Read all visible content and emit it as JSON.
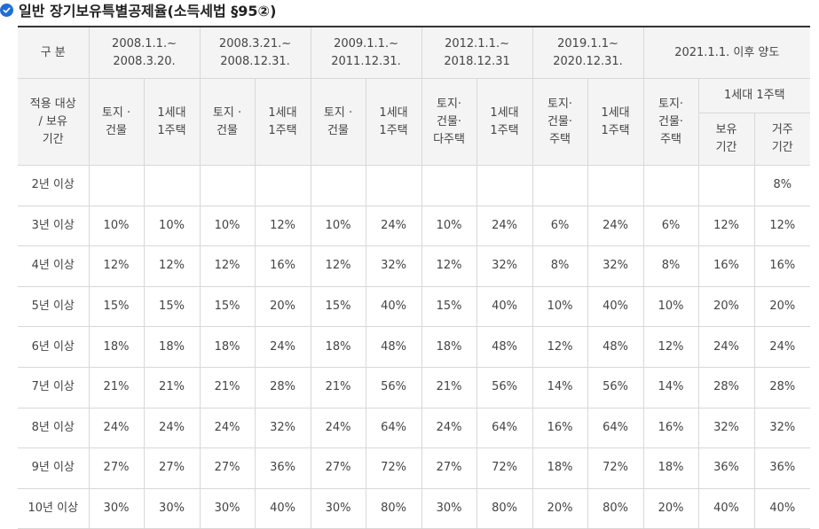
{
  "title": "일반 장기보유특별공제율(소득세법 §95②)",
  "icon": "check-circle-icon",
  "accent": "#1f6fd1",
  "header": {
    "category": "구 분",
    "periods": [
      "2008.1.1.~\n2008.3.20.",
      "2008.3.21.~\n2008.12.31.",
      "2009.1.1.~\n2011.12.31.",
      "2012.1.1.~\n2018.12.31",
      "2019.1.1~\n2020.12.31.",
      "2021.1.1. 이후 양도"
    ],
    "target": "적용 대상\n/ 보유\n기간",
    "sub": [
      "토지 ·\n건물",
      "1세대\n1주택",
      "토지 ·\n건물",
      "1세대\n1주택",
      "토지 ·\n건물",
      "1세대\n1주택",
      "토지·\n건물·\n다주택",
      "1세대\n1주택",
      "토지·\n건물·\n주택",
      "1세대\n1주택",
      "토지·\n건물·\n주택"
    ],
    "one_house": "1세대 1주택",
    "hold": "보유\n기간",
    "reside": "거주\n기간"
  },
  "rows": [
    {
      "label": "2년 이상",
      "values": [
        "",
        "",
        "",
        "",
        "",
        "",
        "",
        "",
        "",
        "",
        "",
        "",
        "8%"
      ]
    },
    {
      "label": "3년 이상",
      "values": [
        "10%",
        "10%",
        "10%",
        "12%",
        "10%",
        "24%",
        "10%",
        "24%",
        "6%",
        "24%",
        "6%",
        "12%",
        "12%"
      ]
    },
    {
      "label": "4년 이상",
      "values": [
        "12%",
        "12%",
        "12%",
        "16%",
        "12%",
        "32%",
        "12%",
        "32%",
        "8%",
        "32%",
        "8%",
        "16%",
        "16%"
      ]
    },
    {
      "label": "5년 이상",
      "values": [
        "15%",
        "15%",
        "15%",
        "20%",
        "15%",
        "40%",
        "15%",
        "40%",
        "10%",
        "40%",
        "10%",
        "20%",
        "20%"
      ]
    },
    {
      "label": "6년 이상",
      "values": [
        "18%",
        "18%",
        "18%",
        "24%",
        "18%",
        "48%",
        "18%",
        "48%",
        "12%",
        "48%",
        "12%",
        "24%",
        "24%"
      ]
    },
    {
      "label": "7년 이상",
      "values": [
        "21%",
        "21%",
        "21%",
        "28%",
        "21%",
        "56%",
        "21%",
        "56%",
        "14%",
        "56%",
        "14%",
        "28%",
        "28%"
      ]
    },
    {
      "label": "8년 이상",
      "values": [
        "24%",
        "24%",
        "24%",
        "32%",
        "24%",
        "64%",
        "24%",
        "64%",
        "16%",
        "64%",
        "16%",
        "32%",
        "32%"
      ]
    },
    {
      "label": "9년 이상",
      "values": [
        "27%",
        "27%",
        "27%",
        "36%",
        "27%",
        "72%",
        "27%",
        "72%",
        "18%",
        "72%",
        "18%",
        "36%",
        "36%"
      ]
    },
    {
      "label": "10년 이상",
      "values": [
        "30%",
        "30%",
        "30%",
        "40%",
        "30%",
        "80%",
        "30%",
        "80%",
        "20%",
        "80%",
        "20%",
        "40%",
        "40%"
      ]
    }
  ]
}
